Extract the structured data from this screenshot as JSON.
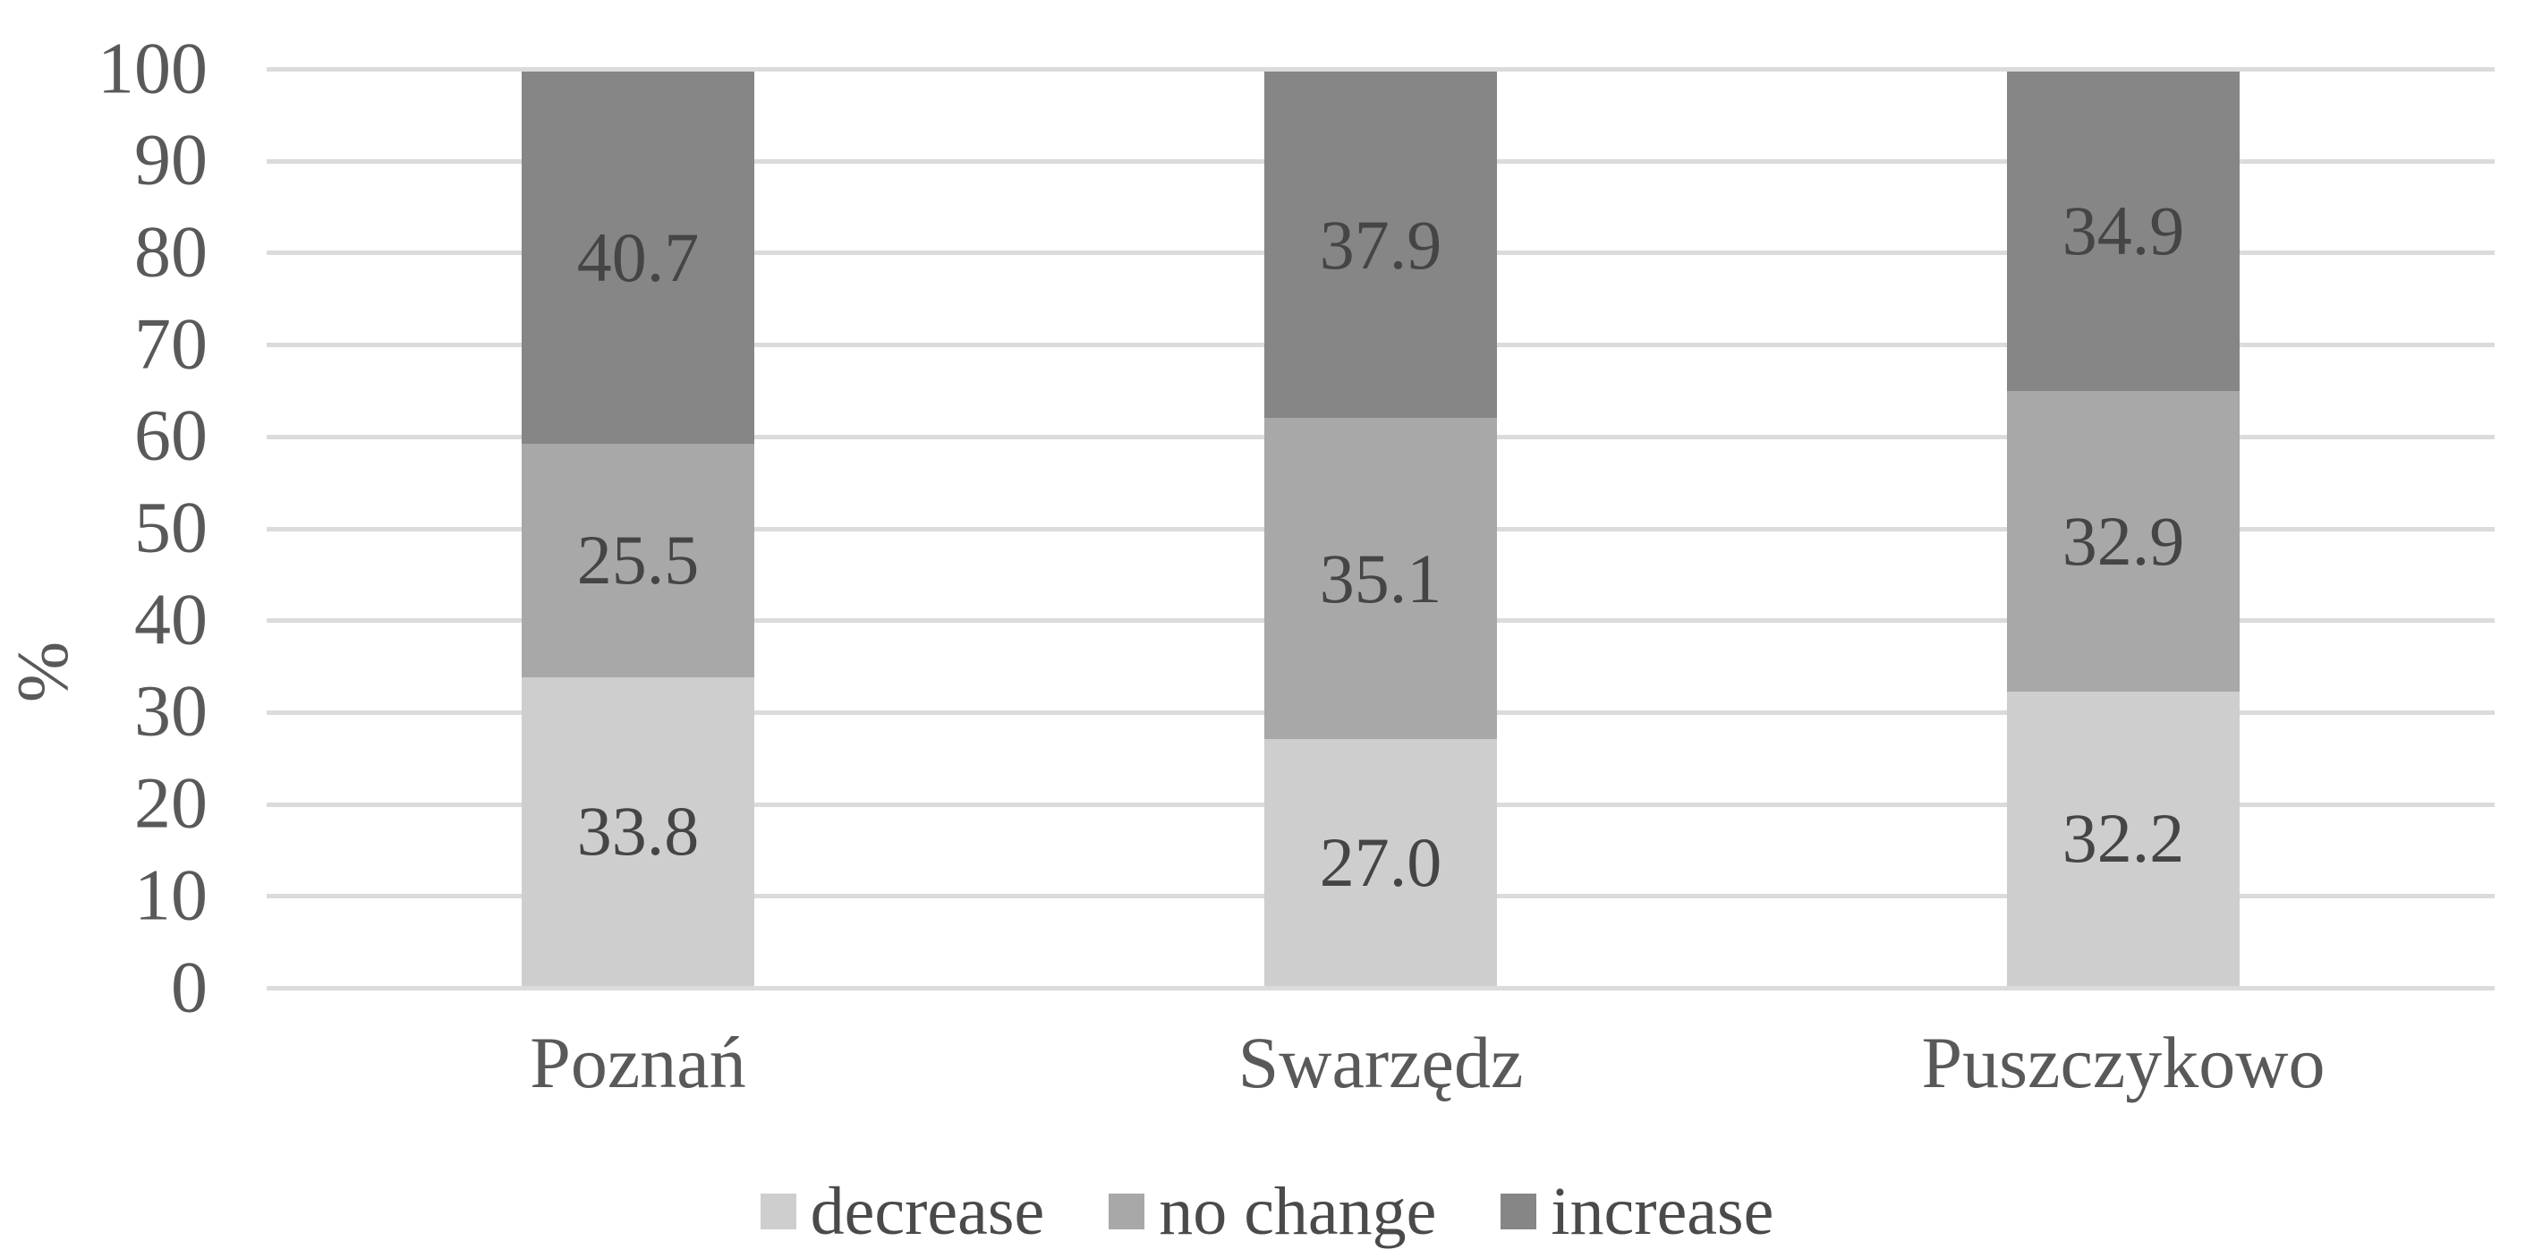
{
  "chart_data": {
    "type": "bar",
    "stacked": true,
    "orientation": "vertical",
    "title": "",
    "xlabel": "",
    "ylabel": "%",
    "ylim": [
      0,
      100
    ],
    "yticks": [
      0,
      10,
      20,
      30,
      40,
      50,
      60,
      70,
      80,
      90,
      100
    ],
    "grid": true,
    "gridline_color": "#dbdbdb",
    "categories": [
      "Poznań",
      "Swarzędz",
      "Puszczykowo"
    ],
    "series": [
      {
        "name": "decrease",
        "color": "#cecece",
        "values": [
          33.8,
          27.0,
          32.2
        ]
      },
      {
        "name": "no change",
        "color": "#a8a8a8",
        "values": [
          25.5,
          35.1,
          32.9
        ]
      },
      {
        "name": "increase",
        "color": "#868686",
        "values": [
          40.7,
          37.9,
          34.9
        ]
      }
    ],
    "data_labels_visible": true,
    "data_label_decimals": 1,
    "legend_position": "bottom",
    "legend_entries": [
      "decrease",
      "no change",
      "increase"
    ]
  },
  "style_colors": {
    "background": "#ffffff",
    "axis_text": "#595959",
    "data_label_text": "#454545",
    "legend_text": "#4a4a4a"
  }
}
